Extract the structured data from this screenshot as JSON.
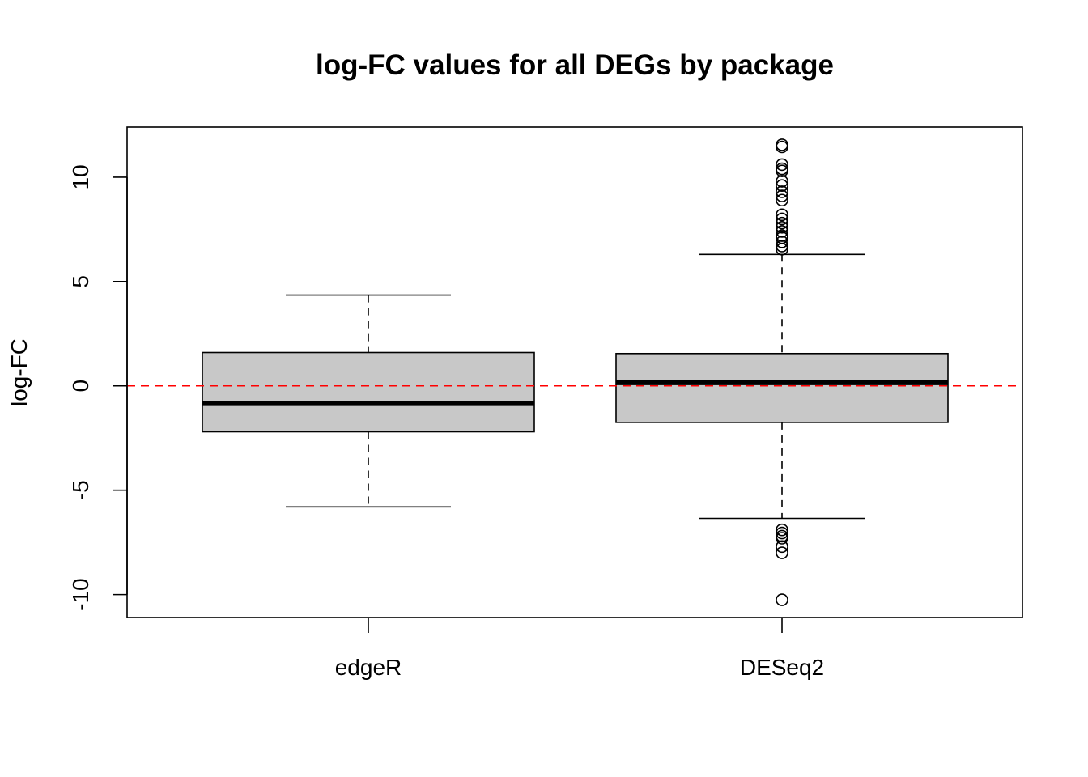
{
  "chart_data": {
    "type": "boxplot",
    "title": "log-FC values for all DEGs by package",
    "xlabel": "",
    "ylabel": "log-FC",
    "ylim": [
      -11.1,
      12.4
    ],
    "yticks": [
      -10,
      -5,
      0,
      5,
      10
    ],
    "yticklabels": [
      "-10",
      "-5",
      "0",
      "5",
      "10"
    ],
    "categories": [
      "edgeR",
      "DESeq2"
    ],
    "boxes": [
      {
        "category": "edgeR",
        "lower_whisker": -5.8,
        "q1": -2.2,
        "median": -0.85,
        "q3": 1.6,
        "upper_whisker": 4.35,
        "outliers": []
      },
      {
        "category": "DESeq2",
        "lower_whisker": -6.35,
        "q1": -1.75,
        "median": 0.15,
        "q3": 1.55,
        "upper_whisker": 6.3,
        "outliers": [
          11.55,
          11.45,
          10.6,
          10.4,
          10.3,
          9.8,
          9.6,
          9.3,
          9.1,
          8.9,
          8.2,
          8.0,
          7.8,
          7.6,
          7.4,
          7.2,
          7.1,
          6.9,
          6.7,
          6.55,
          -6.9,
          -7.05,
          -7.2,
          -7.3,
          -7.7,
          -8.0,
          -10.25
        ]
      }
    ],
    "reference_line": {
      "y": 0,
      "color": "#ff0000",
      "style": "dashed"
    },
    "box_fill": "#c8c8c8",
    "grid": false,
    "legend": "none"
  }
}
